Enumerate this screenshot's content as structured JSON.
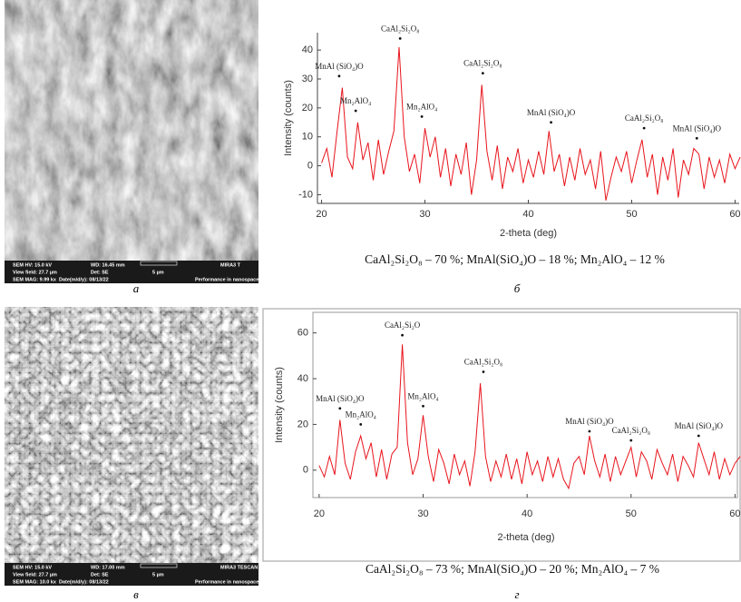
{
  "sem_images": [
    {
      "info": [
        "SEM HV: 15.0 kV",
        "WD: 16.45 mm",
        "MIRA3 T",
        "View field: 27.7 µm",
        "Det: SE",
        "5 µm",
        "SEM MAG: 9.99 kx",
        "Date(m/d/y): 08/13/22",
        "Performance in nanospace"
      ]
    },
    {
      "info": [
        "SEM HV: 15.0 kV",
        "WD: 17.00 mm",
        "MIRA3 TESCAN",
        "View field: 27.7 µm",
        "Det: SE",
        "5 µm",
        "SEM MAG: 10.0 kx",
        "Date(m/d/y): 08/13/22",
        "Performance in nanospace"
      ]
    }
  ],
  "panel_labels": [
    "а",
    "б",
    "в",
    "г"
  ],
  "chart_data": [
    {
      "type": "line",
      "x_label": "2-theta (deg)",
      "y_label": "Intensity (counts)",
      "color": "#e8141c",
      "caption": "CaAl₂Si₂O₈ – 70 %; MnAl(SiO₄)O – 18 %; Mn₂AlO₄ – 12 %",
      "xlim": [
        19.6,
        60.4
      ],
      "ylim": [
        -13,
        46
      ],
      "xticks": [
        20,
        30,
        40,
        50,
        60
      ],
      "yticks": [
        -10,
        0,
        10,
        20,
        30,
        40
      ],
      "x": [
        20,
        20.5,
        21,
        21.5,
        22,
        22.5,
        23,
        23.5,
        24,
        24.5,
        25,
        25.5,
        26,
        26.5,
        27,
        27.5,
        28,
        28.5,
        29,
        29.5,
        30,
        30.5,
        31,
        31.5,
        32,
        32.5,
        33,
        33.5,
        34,
        34.5,
        35,
        35.5,
        36,
        36.5,
        37,
        37.5,
        38,
        38.5,
        39,
        39.5,
        40,
        40.5,
        41,
        41.5,
        42,
        42.5,
        43,
        43.5,
        44,
        44.5,
        45,
        45.5,
        46,
        46.5,
        47,
        47.5,
        48,
        48.5,
        49,
        49.5,
        50,
        50.5,
        51,
        51.5,
        52,
        52.5,
        53,
        53.5,
        54,
        54.5,
        55,
        55.5,
        56,
        56.5,
        57,
        57.5,
        58,
        58.5,
        59,
        59.5,
        60,
        60.5
      ],
      "values": [
        1,
        6,
        -4,
        12,
        27,
        3,
        -1,
        15,
        2,
        8,
        -5,
        9,
        -3,
        5,
        12,
        41,
        10,
        -2,
        4,
        -6,
        13,
        3,
        10,
        -4,
        6,
        -7,
        4,
        -3,
        8,
        -10,
        2,
        28,
        5,
        -5,
        7,
        -8,
        3,
        -2,
        6,
        -6,
        2,
        -4,
        5,
        -3,
        12,
        -2,
        4,
        -7,
        3,
        -5,
        6,
        -3,
        2,
        -8,
        5,
        -12,
        -4,
        3,
        -2,
        5,
        -6,
        2,
        9,
        -4,
        4,
        -10,
        3,
        -5,
        6,
        -11,
        2,
        -3,
        6,
        4,
        -8,
        3,
        -4,
        2,
        -6,
        4,
        -1,
        3
      ],
      "annotations": [
        {
          "label": "MnAl (SiO₄)O",
          "x": 21.7,
          "y": 31
        },
        {
          "label": "Mn₂AlO₄",
          "x": 23.3,
          "y": 19
        },
        {
          "label": "CaAl₂Si₂O₈",
          "x": 27.6,
          "y": 44
        },
        {
          "label": "Mn₂AlO₄",
          "x": 29.7,
          "y": 17
        },
        {
          "label": "CaAl₂Si₂O₈",
          "x": 35.6,
          "y": 32
        },
        {
          "label": "MnAl (SiO₄)O",
          "x": 42.2,
          "y": 15
        },
        {
          "label": "CaAl₂Si₂O₈",
          "x": 51.2,
          "y": 13
        },
        {
          "label": "MnAl (SiO₄)O",
          "x": 56.3,
          "y": 9.5
        }
      ]
    },
    {
      "type": "line",
      "x_label": "2-theta (deg)",
      "y_label": "Intensity (counts)",
      "color": "#e8141c",
      "caption": "CaAl₂Si₂O₈ – 73 %; MnAl(SiO₄)O – 20 %; Mn₂AlO₄ – 7 %",
      "xlim": [
        19.4,
        60.4
      ],
      "ylim": [
        -12,
        69
      ],
      "xticks": [
        20,
        30,
        40,
        50,
        60
      ],
      "yticks": [
        0,
        20,
        40,
        60
      ],
      "x": [
        20,
        20.5,
        21,
        21.5,
        22,
        22.5,
        23,
        23.5,
        24,
        24.5,
        25,
        25.5,
        26,
        26.5,
        27,
        27.5,
        28,
        28.5,
        29,
        29.5,
        30,
        30.5,
        31,
        31.5,
        32,
        32.5,
        33,
        33.5,
        34,
        34.5,
        35,
        35.5,
        36,
        36.5,
        37,
        37.5,
        38,
        38.5,
        39,
        39.5,
        40,
        40.5,
        41,
        41.5,
        42,
        42.5,
        43,
        43.5,
        44,
        44.5,
        45,
        45.5,
        46,
        46.5,
        47,
        47.5,
        48,
        48.5,
        49,
        49.5,
        50,
        50.5,
        51,
        51.5,
        52,
        52.5,
        53,
        53.5,
        54,
        54.5,
        55,
        55.5,
        56,
        56.5,
        57,
        57.5,
        58,
        58.5,
        59,
        59.5,
        60,
        60.5
      ],
      "values": [
        2,
        -3,
        6,
        -2,
        22,
        3,
        -4,
        8,
        15,
        5,
        12,
        -3,
        9,
        -4,
        7,
        10,
        55,
        12,
        -2,
        5,
        24,
        6,
        -5,
        9,
        3,
        -6,
        7,
        -2,
        4,
        -7,
        8,
        38,
        6,
        -5,
        4,
        -3,
        7,
        -4,
        5,
        -6,
        8,
        -2,
        4,
        -5,
        6,
        -3,
        5,
        -4,
        -8,
        3,
        6,
        -2,
        15,
        4,
        -3,
        7,
        -5,
        6,
        -2,
        4,
        10,
        -3,
        8,
        4,
        -4,
        9,
        3,
        -2,
        7,
        -5,
        6,
        2,
        -3,
        12,
        5,
        -2,
        8,
        -4,
        5,
        -2,
        3,
        6
      ],
      "annotations": [
        {
          "label": "MnAl (SiO₄)O",
          "x": 22,
          "y": 27
        },
        {
          "label": "Mn₂AlO₄",
          "x": 24,
          "y": 20
        },
        {
          "label": "CaAl₂Si₂O",
          "x": 28,
          "y": 59
        },
        {
          "label": "Mn₂AlO₄",
          "x": 30,
          "y": 28
        },
        {
          "label": "CaAl₂Si₂O₈",
          "x": 35.8,
          "y": 43
        },
        {
          "label": "MnAl (SiO₄)O",
          "x": 46,
          "y": 17
        },
        {
          "label": "CaAl₂Si₂O₈",
          "x": 50,
          "y": 13
        },
        {
          "label": "MnAl (SiO₄)O",
          "x": 56.5,
          "y": 15
        }
      ]
    }
  ]
}
